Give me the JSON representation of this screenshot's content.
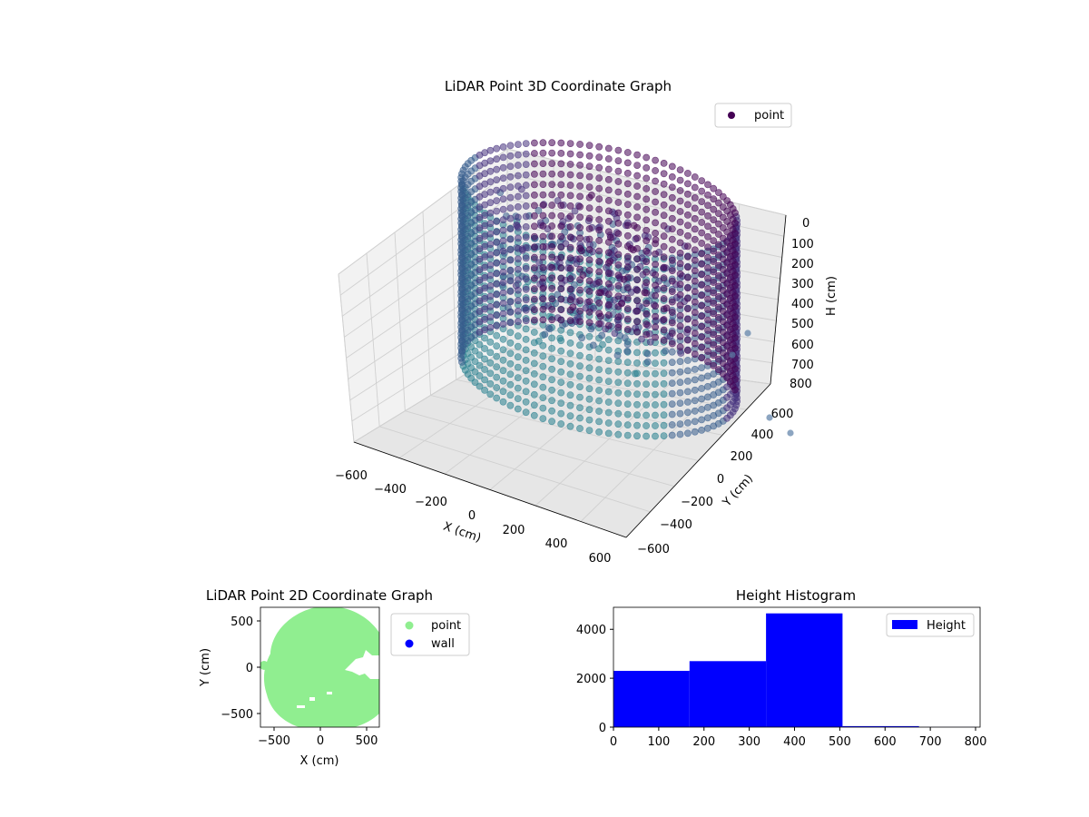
{
  "chart_data": [
    {
      "type": "scatter",
      "projection": "3d",
      "title": "LiDAR Point 3D Coordinate Graph",
      "xlabel": "X (cm)",
      "ylabel": "Y (cm)",
      "zlabel": "H (cm)",
      "xticks": [
        "−600",
        "−400",
        "−200",
        "0",
        "200",
        "400",
        "600"
      ],
      "yticks": [
        "600",
        "400",
        "200",
        "0",
        "−200",
        "−400",
        "−600"
      ],
      "zticks": [
        "0",
        "100",
        "200",
        "300",
        "400",
        "500",
        "600",
        "700",
        "800"
      ],
      "xlim": [
        -600,
        600
      ],
      "ylim": [
        -600,
        600
      ],
      "zlim": [
        0,
        800
      ],
      "z_inverted": true,
      "colormap": "viridis",
      "grid": true,
      "legend": {
        "placement": "upper-right",
        "entries": [
          {
            "label": "point",
            "color": "#440154"
          }
        ]
      },
      "description_series": [
        {
          "name": "point",
          "shape": "ring-shaped wall of points around the origin",
          "radius": 560,
          "height_range": [
            0,
            800
          ]
        }
      ]
    },
    {
      "type": "scatter",
      "title": "LiDAR Point 2D Coordinate Graph",
      "xlabel": "X (cm)",
      "ylabel": "Y (cm)",
      "xticks": [
        "−500",
        "0",
        "500"
      ],
      "yticks": [
        "500",
        "0",
        "−500"
      ],
      "xlim": [
        -650,
        650
      ],
      "ylim": [
        -650,
        650
      ],
      "grid": false,
      "legend": {
        "placement": "outside-right",
        "entries": [
          {
            "label": "point",
            "color": "#90ee90"
          },
          {
            "label": "wall",
            "color": "#0000ff"
          }
        ]
      },
      "series": [
        {
          "name": "point",
          "color": "#90ee90",
          "shape": "filled disc",
          "center": [
            0,
            0
          ],
          "radius": 600
        },
        {
          "name": "wall",
          "color": "#0000ff",
          "values": []
        }
      ]
    },
    {
      "type": "bar",
      "subtype": "histogram",
      "title": "Height Histogram",
      "xlabel": "",
      "ylabel": "",
      "xticks": [
        "0",
        "100",
        "200",
        "300",
        "400",
        "500",
        "600",
        "700",
        "800"
      ],
      "yticks": [
        "0",
        "2000",
        "4000"
      ],
      "xlim": [
        0,
        810
      ],
      "ylim": [
        0,
        4900
      ],
      "color": "#0000ff",
      "legend": {
        "placement": "upper-right",
        "entries": [
          {
            "label": "Height",
            "color": "#0000ff"
          }
        ]
      },
      "bins": [
        {
          "start": 0,
          "end": 168,
          "count": 2300
        },
        {
          "start": 168,
          "end": 337,
          "count": 2700
        },
        {
          "start": 337,
          "end": 506,
          "count": 4650
        },
        {
          "start": 506,
          "end": 675,
          "count": 40
        },
        {
          "start": 675,
          "end": 800,
          "count": 5
        }
      ]
    }
  ]
}
